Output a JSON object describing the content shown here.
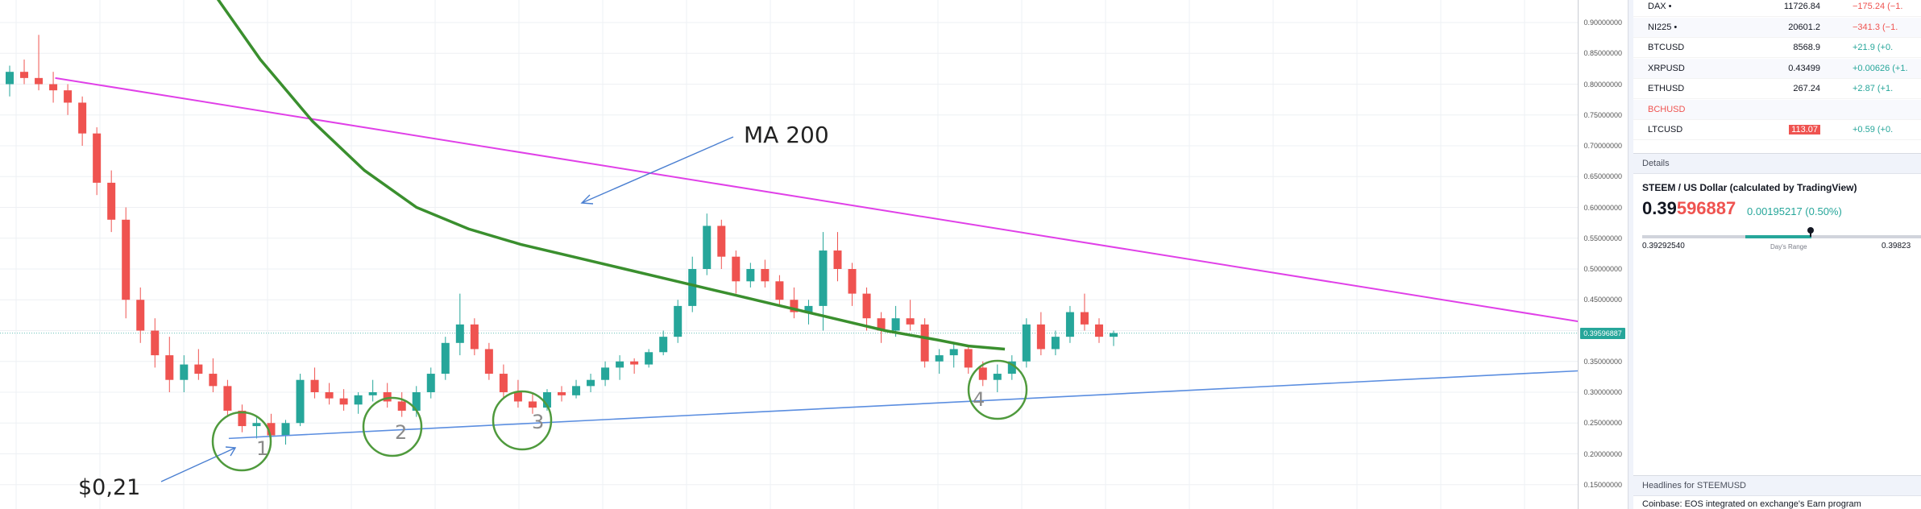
{
  "chart": {
    "annotations": {
      "ma_label": "MA 200",
      "price_label": "$0,21",
      "circle_labels": [
        "1",
        "2",
        "3",
        "4"
      ]
    },
    "price_axis": {
      "ticks": [
        "0.90000000",
        "0.85000000",
        "0.80000000",
        "0.75000000",
        "0.70000000",
        "0.65000000",
        "0.60000000",
        "0.55000000",
        "0.50000000",
        "0.45000000",
        "0.40000000",
        "0.35000000",
        "0.30000000",
        "0.25000000",
        "0.20000000",
        "0.15000000"
      ],
      "current_price_tag": "0.39596887"
    },
    "colors": {
      "up": "#26a69a",
      "down": "#ef5350",
      "ma": "#3a8f2e",
      "resistance": "#e040e8",
      "support": "#5b8ee0",
      "circle": "#4f9a3d"
    },
    "candles": [
      [
        0.8,
        0.83,
        0.78,
        0.82
      ],
      [
        0.82,
        0.84,
        0.8,
        0.81
      ],
      [
        0.81,
        0.88,
        0.79,
        0.8
      ],
      [
        0.8,
        0.82,
        0.77,
        0.79
      ],
      [
        0.79,
        0.8,
        0.75,
        0.77
      ],
      [
        0.77,
        0.78,
        0.7,
        0.72
      ],
      [
        0.72,
        0.73,
        0.62,
        0.64
      ],
      [
        0.64,
        0.66,
        0.56,
        0.58
      ],
      [
        0.58,
        0.6,
        0.42,
        0.45
      ],
      [
        0.45,
        0.47,
        0.38,
        0.4
      ],
      [
        0.4,
        0.42,
        0.34,
        0.36
      ],
      [
        0.36,
        0.39,
        0.3,
        0.32
      ],
      [
        0.32,
        0.36,
        0.3,
        0.345
      ],
      [
        0.345,
        0.37,
        0.32,
        0.33
      ],
      [
        0.33,
        0.355,
        0.3,
        0.31
      ],
      [
        0.31,
        0.32,
        0.26,
        0.27
      ],
      [
        0.27,
        0.28,
        0.235,
        0.245
      ],
      [
        0.245,
        0.26,
        0.225,
        0.25
      ],
      [
        0.25,
        0.265,
        0.22,
        0.23
      ],
      [
        0.23,
        0.255,
        0.215,
        0.25
      ],
      [
        0.25,
        0.33,
        0.245,
        0.32
      ],
      [
        0.32,
        0.34,
        0.29,
        0.3
      ],
      [
        0.3,
        0.315,
        0.28,
        0.29
      ],
      [
        0.29,
        0.305,
        0.27,
        0.28
      ],
      [
        0.28,
        0.3,
        0.265,
        0.295
      ],
      [
        0.295,
        0.32,
        0.285,
        0.3
      ],
      [
        0.3,
        0.315,
        0.275,
        0.285
      ],
      [
        0.285,
        0.3,
        0.26,
        0.27
      ],
      [
        0.27,
        0.31,
        0.26,
        0.3
      ],
      [
        0.3,
        0.34,
        0.29,
        0.33
      ],
      [
        0.33,
        0.39,
        0.32,
        0.38
      ],
      [
        0.38,
        0.46,
        0.36,
        0.41
      ],
      [
        0.41,
        0.42,
        0.36,
        0.37
      ],
      [
        0.37,
        0.38,
        0.32,
        0.33
      ],
      [
        0.33,
        0.345,
        0.29,
        0.3
      ],
      [
        0.3,
        0.32,
        0.275,
        0.285
      ],
      [
        0.285,
        0.3,
        0.265,
        0.275
      ],
      [
        0.275,
        0.305,
        0.27,
        0.3
      ],
      [
        0.3,
        0.31,
        0.285,
        0.295
      ],
      [
        0.295,
        0.32,
        0.29,
        0.31
      ],
      [
        0.31,
        0.33,
        0.3,
        0.32
      ],
      [
        0.32,
        0.35,
        0.31,
        0.34
      ],
      [
        0.34,
        0.36,
        0.32,
        0.35
      ],
      [
        0.35,
        0.355,
        0.33,
        0.345
      ],
      [
        0.345,
        0.37,
        0.34,
        0.365
      ],
      [
        0.365,
        0.4,
        0.36,
        0.39
      ],
      [
        0.39,
        0.45,
        0.38,
        0.44
      ],
      [
        0.44,
        0.52,
        0.43,
        0.5
      ],
      [
        0.5,
        0.59,
        0.49,
        0.57
      ],
      [
        0.57,
        0.58,
        0.5,
        0.52
      ],
      [
        0.52,
        0.53,
        0.46,
        0.48
      ],
      [
        0.48,
        0.51,
        0.47,
        0.5
      ],
      [
        0.5,
        0.515,
        0.47,
        0.48
      ],
      [
        0.48,
        0.49,
        0.44,
        0.45
      ],
      [
        0.45,
        0.47,
        0.42,
        0.43
      ],
      [
        0.43,
        0.45,
        0.41,
        0.44
      ],
      [
        0.44,
        0.56,
        0.4,
        0.53
      ],
      [
        0.53,
        0.56,
        0.48,
        0.5
      ],
      [
        0.5,
        0.51,
        0.44,
        0.46
      ],
      [
        0.46,
        0.47,
        0.4,
        0.42
      ],
      [
        0.42,
        0.43,
        0.38,
        0.4
      ],
      [
        0.4,
        0.44,
        0.39,
        0.42
      ],
      [
        0.42,
        0.45,
        0.4,
        0.41
      ],
      [
        0.41,
        0.42,
        0.34,
        0.35
      ],
      [
        0.35,
        0.37,
        0.33,
        0.36
      ],
      [
        0.36,
        0.38,
        0.34,
        0.37
      ],
      [
        0.37,
        0.375,
        0.33,
        0.34
      ],
      [
        0.34,
        0.35,
        0.31,
        0.32
      ],
      [
        0.32,
        0.345,
        0.3,
        0.33
      ],
      [
        0.33,
        0.36,
        0.32,
        0.35
      ],
      [
        0.35,
        0.42,
        0.34,
        0.41
      ],
      [
        0.41,
        0.43,
        0.36,
        0.37
      ],
      [
        0.37,
        0.4,
        0.36,
        0.39
      ],
      [
        0.39,
        0.44,
        0.38,
        0.43
      ],
      [
        0.43,
        0.46,
        0.4,
        0.41
      ],
      [
        0.41,
        0.42,
        0.38,
        0.39
      ],
      [
        0.39,
        0.4,
        0.375,
        0.396
      ]
    ],
    "ma200": [
      [
        0.2,
        0.96
      ],
      [
        0.25,
        0.84
      ],
      [
        0.3,
        0.74
      ],
      [
        0.35,
        0.66
      ],
      [
        0.4,
        0.6
      ],
      [
        0.45,
        0.565
      ],
      [
        0.5,
        0.54
      ],
      [
        0.55,
        0.52
      ],
      [
        0.6,
        0.5
      ],
      [
        0.65,
        0.48
      ],
      [
        0.7,
        0.46
      ],
      [
        0.75,
        0.44
      ],
      [
        0.8,
        0.42
      ],
      [
        0.85,
        0.4
      ],
      [
        0.9,
        0.385
      ],
      [
        0.93,
        0.375
      ],
      [
        0.965,
        0.37
      ]
    ],
    "resistance_line": [
      [
        0.035,
        0.81
      ],
      [
        1.22,
        0.325
      ]
    ],
    "support_line": [
      [
        0.145,
        0.225
      ],
      [
        1.19,
        0.359
      ]
    ]
  },
  "watchlist": [
    {
      "symbol": "DAX •",
      "last": "11726.84",
      "change": "−175.24 (−1.",
      "dir": "neg",
      "highlight": false,
      "symbol_red": false
    },
    {
      "symbol": "NI225 •",
      "last": "20601.2",
      "change": "−341.3 (−1.",
      "dir": "neg",
      "highlight": false,
      "symbol_red": false
    },
    {
      "symbol": "BTCUSD",
      "last": "8568.9",
      "change": "+21.9 (+0.",
      "dir": "pos",
      "highlight": false,
      "symbol_red": false
    },
    {
      "symbol": "XRPUSD",
      "last": "0.43499",
      "change": "+0.00626 (+1.",
      "dir": "pos",
      "highlight": false,
      "symbol_red": false
    },
    {
      "symbol": "ETHUSD",
      "last": "267.24",
      "change": "+2.87 (+1.",
      "dir": "pos",
      "highlight": false,
      "symbol_red": false
    },
    {
      "symbol": "BCHUSD",
      "last": "",
      "change": "",
      "dir": "neg",
      "highlight": false,
      "symbol_red": true
    },
    {
      "symbol": "LTCUSD",
      "last": "113.07",
      "change": "+0.59 (+0.",
      "dir": "pos",
      "highlight": true,
      "symbol_red": false
    }
  ],
  "details": {
    "header": "Details",
    "title": "STEEM / US Dollar (calculated by TradingView)",
    "price_main": "0.39",
    "price_red": "596887",
    "change": "0.00195217 (0.50%)",
    "range_low": "0.39292540",
    "range_high": "0.39823",
    "range_caption": "Day's Range",
    "range_position": 0.55
  },
  "headlines": {
    "header": "Headlines for STEEMUSD",
    "item": "Coinbase: EOS integrated on exchange's Earn program"
  }
}
